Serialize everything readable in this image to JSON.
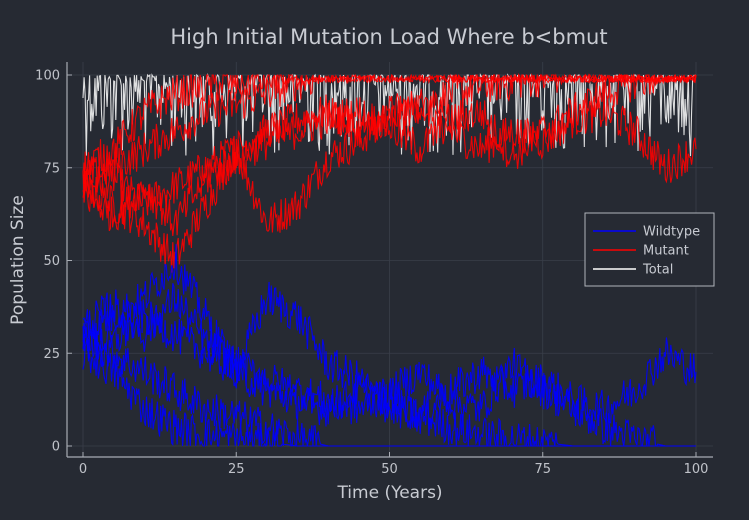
{
  "chart_data": {
    "type": "line",
    "title": "High Initial Mutation Load Where b<bmut",
    "xlabel": "Time (Years)",
    "ylabel": "Population Size",
    "xlim": [
      0,
      100
    ],
    "ylim": [
      0,
      100
    ],
    "xticks": [
      0,
      25,
      50,
      75,
      100
    ],
    "yticks": [
      0,
      25,
      50,
      75,
      100
    ],
    "grid": true,
    "legend_position": "right",
    "background_color": "#262a33",
    "series": [
      {
        "name": "Wildtype",
        "color": "#0000ff",
        "trajectories": [
          {
            "x": [
              0,
              5,
              10,
              15,
              20,
              25,
              30,
              35,
              40,
              45,
              50,
              55,
              60,
              65,
              70,
              75,
              80,
              85,
              90,
              95,
              100
            ],
            "y": [
              30,
              28,
              35,
              30,
              25,
              20,
              40,
              35,
              22,
              18,
              10,
              8,
              5,
              3,
              2,
              1,
              0,
              0,
              0,
              0,
              0
            ]
          },
          {
            "x": [
              0,
              5,
              10,
              15,
              20,
              25,
              30,
              35,
              40,
              45,
              50,
              55,
              60,
              65,
              70,
              75,
              80,
              85,
              90,
              95,
              100
            ],
            "y": [
              30,
              35,
              40,
              50,
              35,
              20,
              15,
              12,
              10,
              15,
              12,
              8,
              15,
              20,
              15,
              18,
              12,
              10,
              15,
              25,
              20
            ]
          },
          {
            "x": [
              0,
              5,
              10,
              15,
              20,
              25,
              30,
              35,
              40,
              45,
              50,
              55,
              60,
              65,
              70,
              75,
              80,
              85,
              90,
              95,
              100
            ],
            "y": [
              28,
              25,
              20,
              15,
              10,
              8,
              5,
              2,
              0,
              0,
              0,
              0,
              0,
              0,
              0,
              0,
              0,
              0,
              0,
              0,
              0
            ]
          },
          {
            "x": [
              0,
              5,
              10,
              15,
              20,
              25,
              30,
              35,
              40,
              45,
              50,
              55,
              60,
              65,
              70,
              75,
              80,
              85,
              90,
              95,
              100
            ],
            "y": [
              25,
              20,
              10,
              5,
              3,
              2,
              1,
              0,
              0,
              0,
              0,
              0,
              0,
              0,
              0,
              0,
              0,
              0,
              0,
              0,
              0
            ]
          },
          {
            "x": [
              0,
              5,
              10,
              15,
              20,
              25,
              30,
              35,
              40,
              45,
              50,
              55,
              60,
              65,
              70,
              75,
              80,
              85,
              90,
              95,
              100
            ],
            "y": [
              32,
              38,
              30,
              40,
              28,
              22,
              18,
              15,
              12,
              10,
              14,
              20,
              12,
              10,
              22,
              15,
              10,
              5,
              2,
              0,
              0
            ]
          }
        ]
      },
      {
        "name": "Mutant",
        "color": "#ff0000",
        "trajectories": [
          {
            "x": [
              0,
              5,
              10,
              15,
              20,
              25,
              30,
              35,
              40,
              45,
              50,
              55,
              60,
              65,
              70,
              75,
              80,
              85,
              90,
              95,
              100
            ],
            "y": [
              70,
              72,
              65,
              70,
              75,
              80,
              60,
              65,
              78,
              82,
              90,
              92,
              95,
              97,
              98,
              99,
              100,
              100,
              100,
              100,
              100
            ]
          },
          {
            "x": [
              0,
              5,
              10,
              15,
              20,
              25,
              30,
              35,
              40,
              45,
              50,
              55,
              60,
              65,
              70,
              75,
              80,
              85,
              90,
              95,
              100
            ],
            "y": [
              70,
              65,
              60,
              50,
              65,
              80,
              85,
              88,
              90,
              85,
              88,
              92,
              85,
              80,
              85,
              82,
              88,
              90,
              85,
              75,
              80
            ]
          },
          {
            "x": [
              0,
              5,
              10,
              15,
              20,
              25,
              30,
              35,
              40,
              45,
              50,
              55,
              60,
              65,
              70,
              75,
              80,
              85,
              90,
              95,
              100
            ],
            "y": [
              72,
              75,
              80,
              85,
              90,
              92,
              95,
              98,
              100,
              100,
              100,
              100,
              100,
              100,
              100,
              100,
              100,
              100,
              100,
              100,
              100
            ]
          },
          {
            "x": [
              0,
              5,
              10,
              15,
              20,
              25,
              30,
              35,
              40,
              45,
              50,
              55,
              60,
              65,
              70,
              75,
              80,
              85,
              90,
              95,
              100
            ],
            "y": [
              75,
              80,
              90,
              95,
              97,
              98,
              99,
              100,
              100,
              100,
              100,
              100,
              100,
              100,
              100,
              100,
              100,
              100,
              100,
              100,
              100
            ]
          },
          {
            "x": [
              0,
              5,
              10,
              15,
              20,
              25,
              30,
              35,
              40,
              45,
              50,
              55,
              60,
              65,
              70,
              75,
              80,
              85,
              90,
              95,
              100
            ],
            "y": [
              68,
              62,
              70,
              60,
              72,
              78,
              82,
              85,
              88,
              90,
              86,
              80,
              88,
              90,
              78,
              85,
              90,
              95,
              98,
              100,
              100
            ]
          }
        ]
      },
      {
        "name": "Total",
        "color": "#ffffff",
        "trajectories": [
          {
            "x": [
              0,
              5,
              10,
              15,
              20,
              25,
              30,
              35,
              40,
              45,
              50,
              55,
              60,
              65,
              70,
              75,
              80,
              85,
              90,
              95,
              100
            ],
            "y": [
              100,
              100,
              100,
              100,
              100,
              100,
              100,
              100,
              100,
              100,
              100,
              100,
              100,
              100,
              100,
              100,
              100,
              100,
              100,
              100,
              100
            ]
          }
        ]
      }
    ]
  }
}
